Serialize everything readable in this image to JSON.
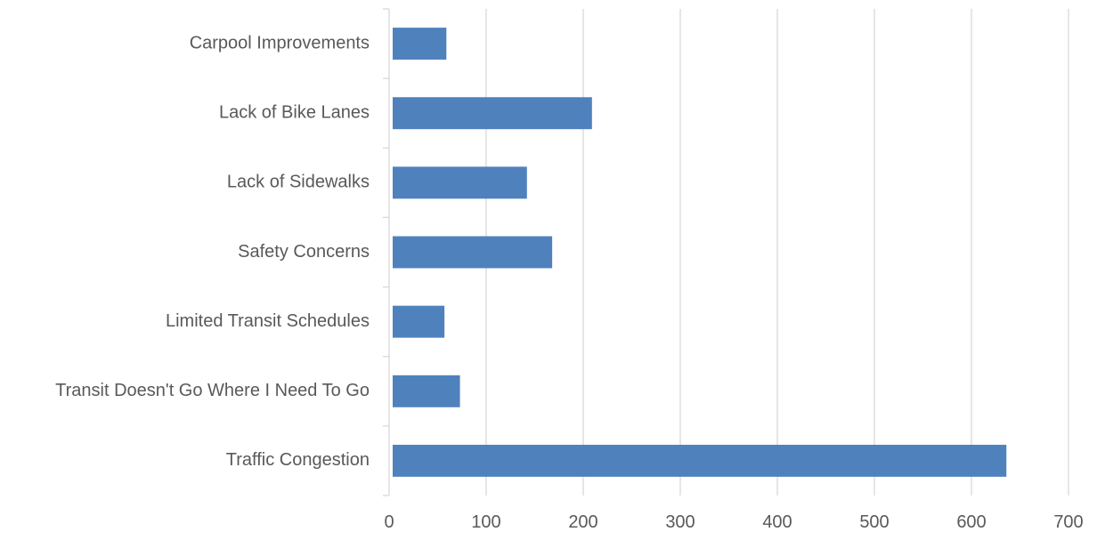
{
  "chart_data": {
    "type": "bar",
    "orientation": "horizontal",
    "categories": [
      "Traffic Congestion",
      "Transit Doesn't Go Where I Need To Go",
      "Limited Transit Schedules",
      "Safety Concerns",
      "Lack of Sidewalks",
      "Lack of Bike Lanes",
      "Carpool Improvements"
    ],
    "values": [
      636,
      73,
      57,
      168,
      142,
      209,
      59
    ],
    "title": "",
    "xlabel": "",
    "ylabel": "",
    "xlim": [
      0,
      700
    ],
    "x_ticks": [
      0,
      100,
      200,
      300,
      400,
      500,
      600,
      700
    ],
    "x_tick_labels": [
      "0",
      "100",
      "200",
      "300",
      "400",
      "500",
      "600",
      "700"
    ],
    "grid": "vertical",
    "legend": "none",
    "bar_color": "#4f81bd",
    "grid_color": "#d9d9d9",
    "label_color": "#595959"
  }
}
